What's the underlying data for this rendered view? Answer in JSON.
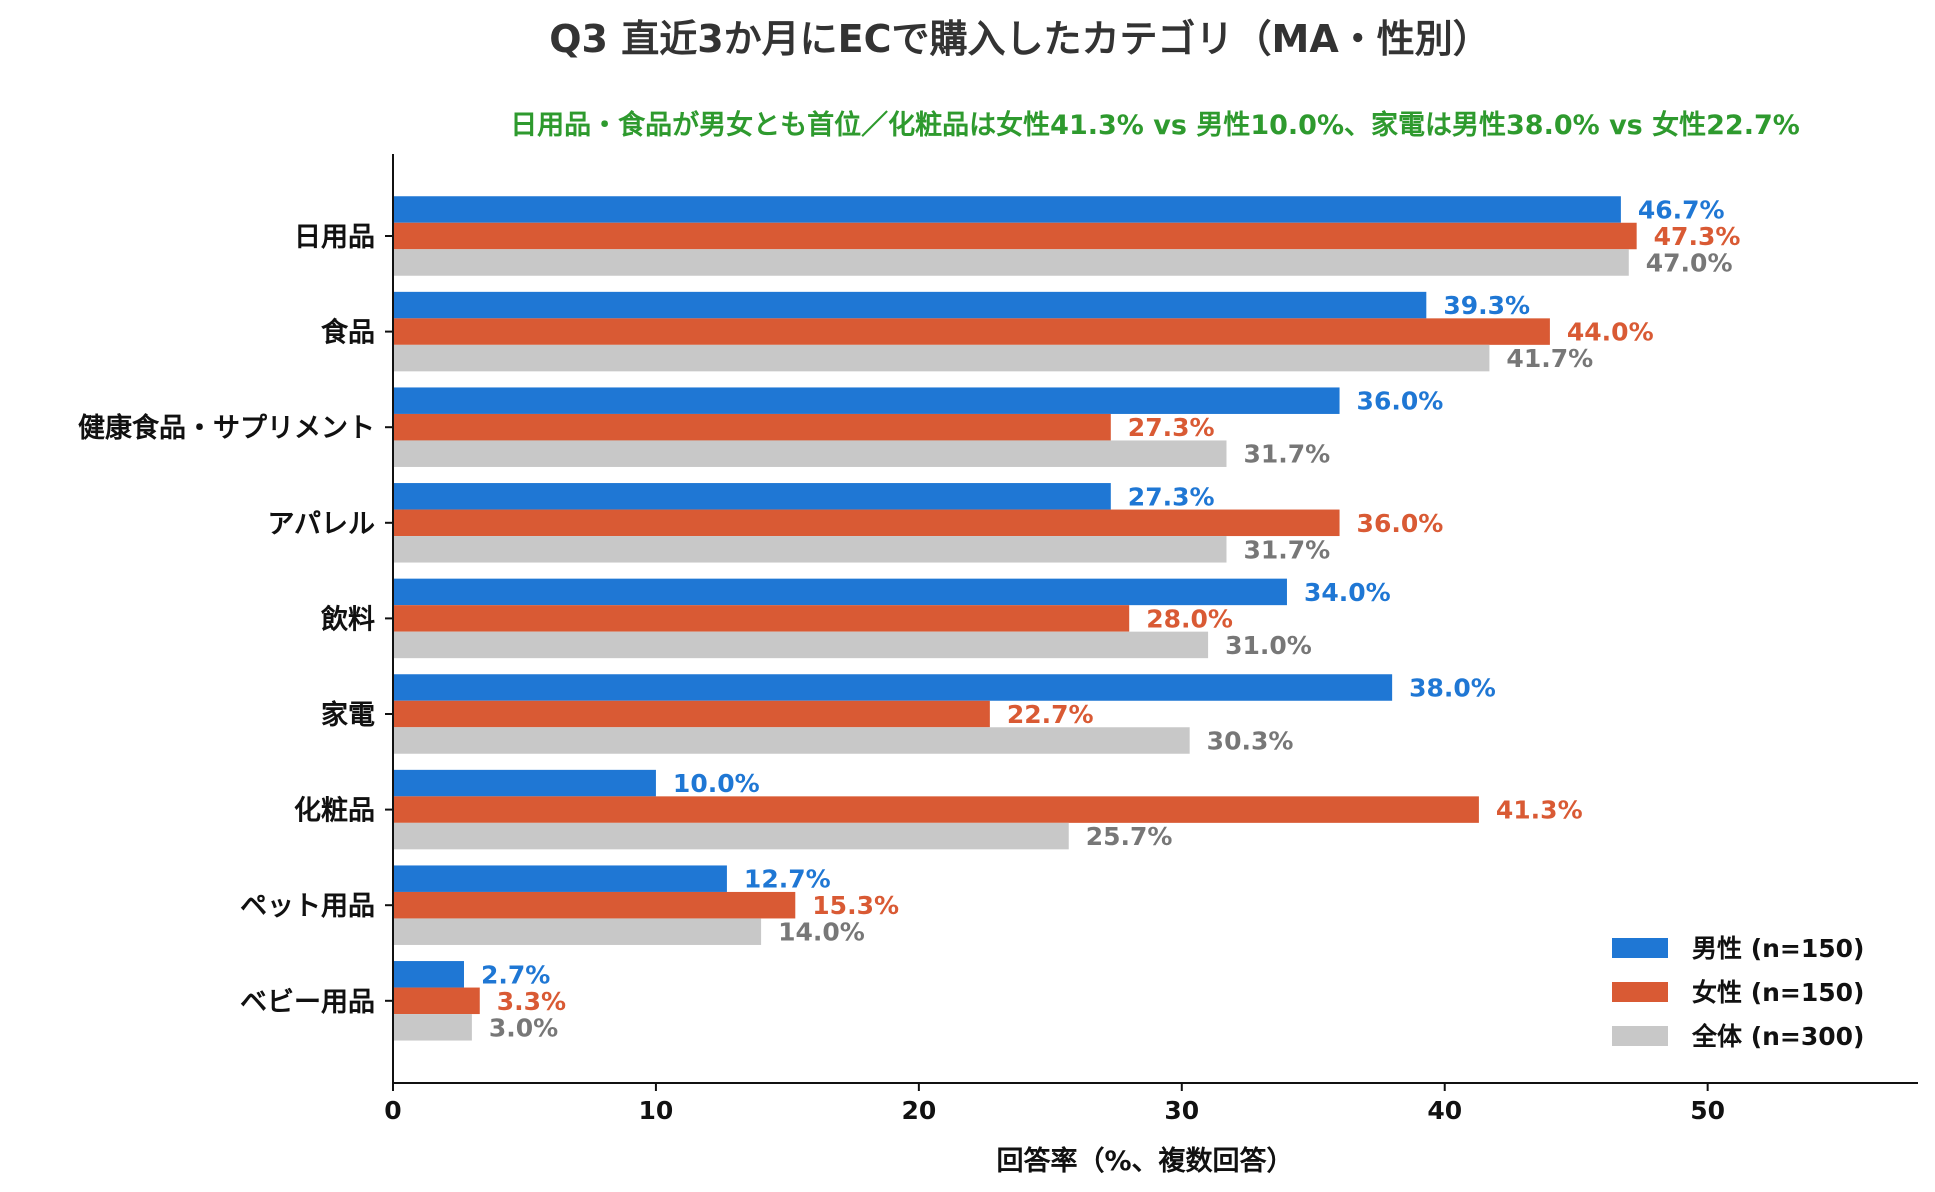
{
  "chart_data": {
    "type": "bar",
    "orientation": "horizontal",
    "title": "Q3 直近3か月にECで購入したカテゴリ（MA・性別）",
    "subtitle": "日用品・食品が男女とも首位／化粧品は女性41.3% vs 男性10.0%、家電は男性38.0% vs 女性22.7%",
    "xlabel": "回答率（%、複数回答）",
    "ylabel": "",
    "xlim": [
      0,
      58
    ],
    "xticks": [
      0,
      10,
      20,
      30,
      40,
      50
    ],
    "categories": [
      "日用品",
      "食品",
      "健康食品・サプリメント",
      "アパレル",
      "飲料",
      "家電",
      "化粧品",
      "ペット用品",
      "ベビー用品"
    ],
    "series": [
      {
        "name": "男性 (n=150)",
        "color": "#1f77d4",
        "label_color": "#1f77d4",
        "values": [
          46.7,
          39.3,
          36.0,
          27.3,
          34.0,
          38.0,
          10.0,
          12.7,
          2.7
        ],
        "labels": [
          "46.7%",
          "39.3%",
          "36.0%",
          "27.3%",
          "34.0%",
          "38.0%",
          "10.0%",
          "12.7%",
          "2.7%"
        ]
      },
      {
        "name": "女性 (n=150)",
        "color": "#d95a34",
        "label_color": "#d95a34",
        "values": [
          47.3,
          44.0,
          27.3,
          36.0,
          28.0,
          22.7,
          41.3,
          15.3,
          3.3
        ],
        "labels": [
          "47.3%",
          "44.0%",
          "27.3%",
          "36.0%",
          "28.0%",
          "22.7%",
          "41.3%",
          "15.3%",
          "3.3%"
        ]
      },
      {
        "name": "全体 (n=300)",
        "color": "#c8c8c8",
        "label_color": "#777777",
        "values": [
          47.0,
          41.7,
          31.7,
          31.7,
          31.0,
          30.3,
          25.7,
          14.0,
          3.0
        ],
        "labels": [
          "47.0%",
          "41.7%",
          "31.7%",
          "31.7%",
          "31.0%",
          "30.3%",
          "25.7%",
          "14.0%",
          "3.0%"
        ]
      }
    ],
    "legend_position": "bottom-right",
    "grid": false,
    "colors": {
      "title": "#333333",
      "subtitle": "#2e9a2e",
      "axis": "#111111"
    }
  }
}
